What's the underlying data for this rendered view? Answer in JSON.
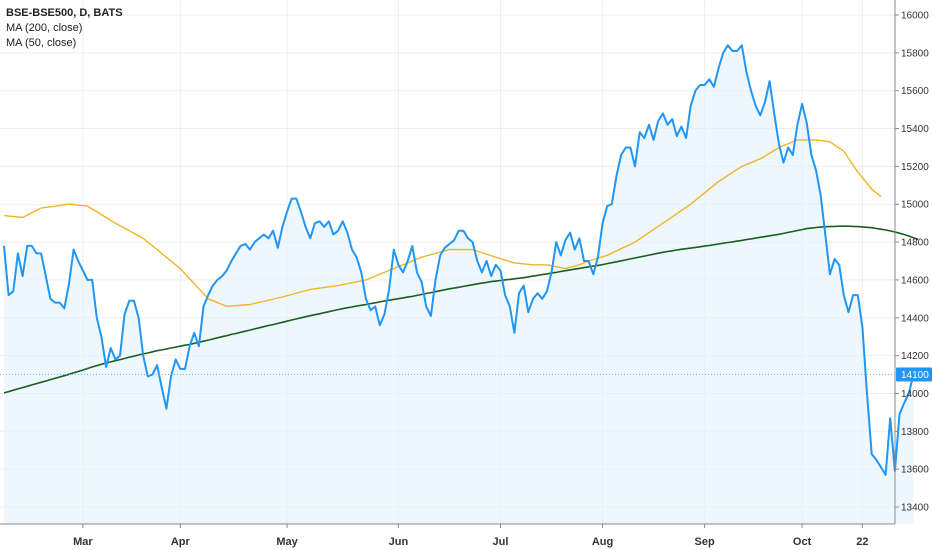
{
  "legend": {
    "title": "BSE-BSE500, D, BATS",
    "ma200": "MA (200, close)",
    "ma50": "MA (50, close)"
  },
  "colors": {
    "price": "#2196f3",
    "price_fill": "#e3f2fd",
    "ma200": "#1b5e20",
    "ma50": "#f0b429",
    "last_price_line": "#4fc3f7",
    "axis": "#888888",
    "grid": "#eeeeee"
  },
  "chart_data": {
    "type": "line",
    "x_axis": {
      "tick_labels": [
        "Mar",
        "Apr",
        "May",
        "Jun",
        "Jul",
        "Aug",
        "Sep",
        "Oct",
        "22"
      ],
      "tick_index": [
        17,
        38,
        61,
        85,
        107,
        129,
        151,
        172,
        185
      ]
    },
    "y_axis": {
      "ylim": [
        13300,
        16060
      ],
      "ticks": [
        13400,
        13600,
        13800,
        14000,
        14200,
        14400,
        14600,
        14800,
        15000,
        15200,
        15400,
        15600,
        15800,
        16000
      ]
    },
    "last_price": 14100,
    "series": [
      {
        "key": "price",
        "values": [
          14780,
          14520,
          14540,
          14740,
          14620,
          14780,
          14780,
          14740,
          14740,
          14620,
          14500,
          14480,
          14480,
          14450,
          14580,
          14760,
          14700,
          14650,
          14600,
          14600,
          14400,
          14300,
          14140,
          14240,
          14180,
          14200,
          14420,
          14490,
          14490,
          14400,
          14200,
          14090,
          14100,
          14150,
          14030,
          13920,
          14090,
          14180,
          14130,
          14130,
          14250,
          14320,
          14250,
          14460,
          14520,
          14570,
          14600,
          14620,
          14650,
          14700,
          14740,
          14780,
          14790,
          14760,
          14800,
          14820,
          14840,
          14820,
          14860,
          14770,
          14880,
          14960,
          15030,
          15030,
          14960,
          14880,
          14820,
          14900,
          14910,
          14880,
          14910,
          14840,
          14860,
          14910,
          14850,
          14760,
          14720,
          14640,
          14500,
          14440,
          14460,
          14360,
          14420,
          14550,
          14760,
          14680,
          14640,
          14700,
          14780,
          14640,
          14590,
          14460,
          14410,
          14600,
          14730,
          14770,
          14790,
          14810,
          14860,
          14860,
          14820,
          14800,
          14700,
          14640,
          14700,
          14620,
          14680,
          14650,
          14520,
          14460,
          14320,
          14530,
          14570,
          14430,
          14500,
          14530,
          14500,
          14540,
          14640,
          14800,
          14730,
          14810,
          14850,
          14760,
          14820,
          14700,
          14700,
          14630,
          14720,
          14900,
          14990,
          15000,
          15150,
          15260,
          15300,
          15300,
          15200,
          15380,
          15350,
          15420,
          15340,
          15440,
          15480,
          15420,
          15450,
          15360,
          15410,
          15350,
          15520,
          15600,
          15630,
          15630,
          15660,
          15620,
          15720,
          15800,
          15840,
          15810,
          15810,
          15840,
          15700,
          15600,
          15520,
          15470,
          15540,
          15650,
          15480,
          15320,
          15220,
          15300,
          15260,
          15420,
          15530,
          15430,
          15260,
          15180,
          15050,
          14840,
          14630,
          14710,
          14680,
          14520,
          14430,
          14520,
          14520,
          14350,
          14000,
          13680,
          13650,
          13610,
          13570,
          13870,
          13590,
          13890,
          13950,
          14000,
          14100
        ]
      },
      {
        "key": "ma200",
        "values": [
          14003,
          14010,
          14017,
          14024,
          14031,
          14038,
          14045,
          14052,
          14059,
          14066,
          14073,
          14080,
          14087,
          14094,
          14101,
          14109,
          14116,
          14124,
          14132,
          14140,
          14147,
          14154,
          14161,
          14167,
          14173,
          14179,
          14185,
          14192,
          14197,
          14203,
          14209,
          14214,
          14220,
          14226,
          14230,
          14235,
          14240,
          14245,
          14250,
          14255,
          14259,
          14265,
          14271,
          14276,
          14282,
          14288,
          14294,
          14300,
          14305,
          14312,
          14317,
          14323,
          14329,
          14335,
          14341,
          14347,
          14353,
          14359,
          14364,
          14370,
          14376,
          14382,
          14388,
          14394,
          14400,
          14405,
          14411,
          14416,
          14421,
          14427,
          14432,
          14438,
          14443,
          14448,
          14453,
          14457,
          14462,
          14466,
          14470,
          14475,
          14479,
          14484,
          14489,
          14493,
          14497,
          14501,
          14505,
          14509,
          14513,
          14518,
          14523,
          14528,
          14533,
          14538,
          14543,
          14548,
          14553,
          14557,
          14561,
          14566,
          14570,
          14575,
          14579,
          14583,
          14587,
          14591,
          14594,
          14597,
          14600,
          14603,
          14606,
          14609,
          14612,
          14616,
          14620,
          14624,
          14628,
          14632,
          14636,
          14640,
          14645,
          14649,
          14653,
          14657,
          14661,
          14665,
          14669,
          14673,
          14677,
          14681,
          14686,
          14691,
          14696,
          14701,
          14706,
          14711,
          14716,
          14721,
          14726,
          14731,
          14736,
          14741,
          14746,
          14750,
          14754,
          14758,
          14762,
          14765,
          14768,
          14772,
          14775,
          14779,
          14782,
          14786,
          14790,
          14794,
          14798,
          14801,
          14805,
          14809,
          14813,
          14817,
          14821,
          14825,
          14829,
          14833,
          14837,
          14841,
          14846,
          14851,
          14856,
          14861,
          14866,
          14871,
          14874,
          14877,
          14879,
          14881,
          14882,
          14883,
          14884,
          14884,
          14884,
          14883,
          14882,
          14880,
          14878,
          14876,
          14872,
          14868,
          14864,
          14859,
          14853,
          14847,
          14840,
          14832,
          14823,
          14814
        ]
      },
      {
        "key": "ma50",
        "points": [
          [
            0,
            14940
          ],
          [
            4,
            14930
          ],
          [
            8,
            14980
          ],
          [
            14,
            15000
          ],
          [
            18,
            14990
          ],
          [
            24,
            14900
          ],
          [
            30,
            14820
          ],
          [
            38,
            14660
          ],
          [
            44,
            14500
          ],
          [
            48,
            14460
          ],
          [
            53,
            14470
          ],
          [
            60,
            14510
          ],
          [
            66,
            14550
          ],
          [
            72,
            14570
          ],
          [
            78,
            14600
          ],
          [
            84,
            14660
          ],
          [
            90,
            14720
          ],
          [
            96,
            14760
          ],
          [
            101,
            14760
          ],
          [
            106,
            14720
          ],
          [
            110,
            14690
          ],
          [
            114,
            14680
          ],
          [
            117,
            14680
          ],
          [
            121,
            14660
          ],
          [
            124,
            14680
          ],
          [
            126,
            14700
          ],
          [
            130,
            14730
          ],
          [
            136,
            14800
          ],
          [
            142,
            14900
          ],
          [
            148,
            15000
          ],
          [
            154,
            15120
          ],
          [
            159,
            15200
          ],
          [
            163,
            15240
          ],
          [
            167,
            15300
          ],
          [
            171,
            15340
          ],
          [
            175,
            15340
          ],
          [
            178,
            15330
          ],
          [
            181,
            15280
          ],
          [
            184,
            15170
          ],
          [
            187,
            15080
          ],
          [
            189,
            15040
          ]
        ]
      }
    ]
  }
}
